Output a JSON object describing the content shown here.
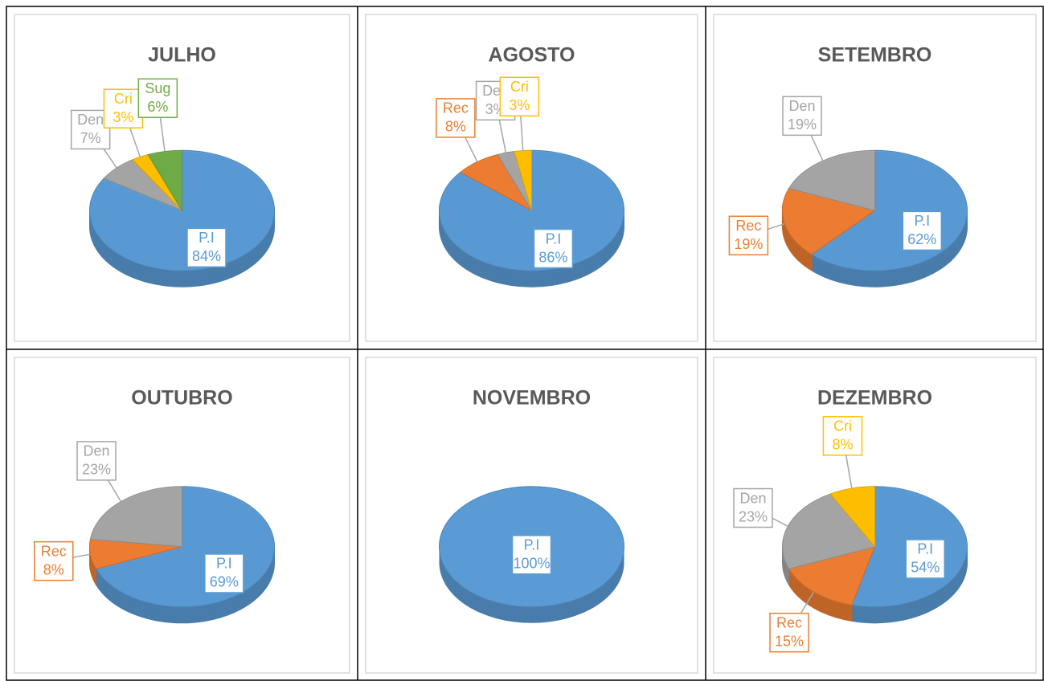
{
  "chart_data": [
    {
      "type": "pie",
      "title": "JULHO",
      "categories": [
        "P.I",
        "Den",
        "Cri",
        "Sug"
      ],
      "values": [
        84,
        7,
        3,
        6
      ],
      "value_labels": [
        "84%",
        "7%",
        "3%",
        "6%"
      ],
      "colors": [
        "#5b9bd5",
        "#a5a5a5",
        "#ffc000",
        "#70ad47"
      ]
    },
    {
      "type": "pie",
      "title": "AGOSTO",
      "categories": [
        "P.I",
        "Rec",
        "Den",
        "Cri"
      ],
      "values": [
        86,
        8,
        3,
        3
      ],
      "value_labels": [
        "86%",
        "8%",
        "3%",
        "3%"
      ],
      "colors": [
        "#5b9bd5",
        "#ed7d31",
        "#a5a5a5",
        "#ffc000"
      ]
    },
    {
      "type": "pie",
      "title": "SETEMBRO",
      "categories": [
        "P.I",
        "Rec",
        "Den"
      ],
      "values": [
        62,
        19,
        19
      ],
      "value_labels": [
        "62%",
        "19%",
        "19%"
      ],
      "colors": [
        "#5b9bd5",
        "#ed7d31",
        "#a5a5a5"
      ]
    },
    {
      "type": "pie",
      "title": "OUTUBRO",
      "categories": [
        "P.I",
        "Rec",
        "Den"
      ],
      "values": [
        69,
        8,
        23
      ],
      "value_labels": [
        "69%",
        "8%",
        "23%"
      ],
      "colors": [
        "#5b9bd5",
        "#ed7d31",
        "#a5a5a5"
      ]
    },
    {
      "type": "pie",
      "title": "NOVEMBRO",
      "categories": [
        "P.I"
      ],
      "values": [
        100
      ],
      "value_labels": [
        "100%"
      ],
      "colors": [
        "#5b9bd5"
      ]
    },
    {
      "type": "pie",
      "title": "DEZEMBRO",
      "categories": [
        "P.I",
        "Rec",
        "Den",
        "Cri"
      ],
      "values": [
        54,
        15,
        23,
        8
      ],
      "value_labels": [
        "54%",
        "15%",
        "23%",
        "8%"
      ],
      "colors": [
        "#5b9bd5",
        "#ed7d31",
        "#a5a5a5",
        "#ffc000"
      ]
    }
  ]
}
